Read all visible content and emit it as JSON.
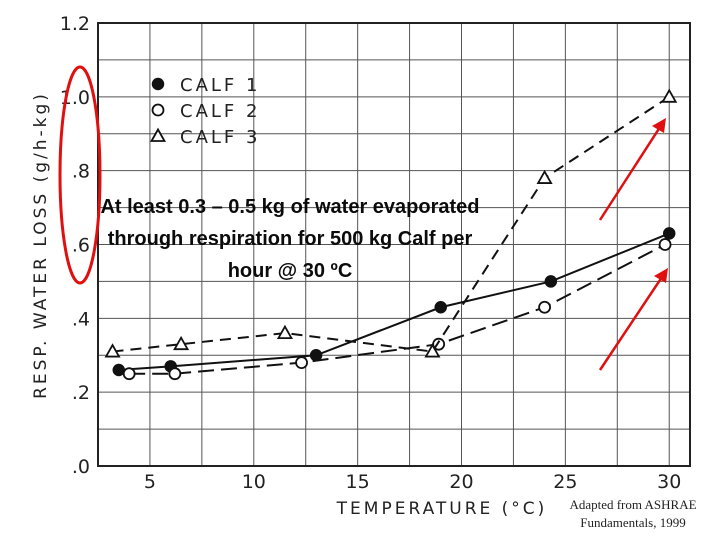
{
  "chart_data": {
    "type": "line",
    "xlabel": "TEMPERATURE (°C)",
    "ylabel": "RESP. WATER LOSS (g/h-kg)",
    "xlim": [
      2.5,
      31
    ],
    "ylim": [
      0,
      1.2
    ],
    "xticks": [
      5,
      10,
      15,
      20,
      25,
      30
    ],
    "xtick_labels": [
      "5",
      "10",
      "15",
      "20",
      "25",
      "30"
    ],
    "yticks": [
      0,
      0.2,
      0.4,
      0.6,
      0.8,
      1.0,
      1.2
    ],
    "ytick_labels": [
      ".0",
      ".2",
      ".4",
      ".6",
      ".8",
      "1.0",
      "1.2"
    ],
    "grid": true,
    "legend_position": "top-left",
    "series": [
      {
        "name": "CALF 1",
        "marker": "filled-circle",
        "dash": "solid",
        "x": [
          3.5,
          6,
          13,
          19,
          24.3,
          30
        ],
        "y": [
          0.26,
          0.27,
          0.3,
          0.43,
          0.5,
          0.63
        ]
      },
      {
        "name": "CALF 2",
        "marker": "open-circle",
        "dash": "long-dash",
        "x": [
          4,
          6.2,
          12.3,
          18.9,
          24,
          29.8
        ],
        "y": [
          0.25,
          0.25,
          0.28,
          0.33,
          0.43,
          0.6
        ]
      },
      {
        "name": "CALF 3",
        "marker": "open-triangle",
        "dash": "dashed",
        "x": [
          3.2,
          6.5,
          11.5,
          18.6,
          24,
          30
        ],
        "y": [
          0.31,
          0.33,
          0.36,
          0.31,
          0.78,
          1.0
        ]
      }
    ]
  },
  "annotation": {
    "text": "At least 0.3 – 0.5 kg of water evaporated through respiration for 500 kg Calf per hour @ 30 ºC"
  },
  "source_note": "Adapted from ASHRAE Fundamentals, 1999",
  "colors": {
    "highlight": "#e01010",
    "arrows": "#e01010",
    "ink": "#111111"
  }
}
